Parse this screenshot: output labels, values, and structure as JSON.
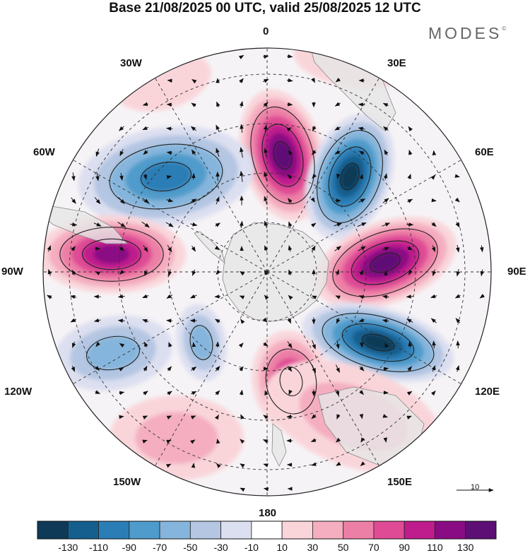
{
  "title": "Base 21/08/2025 00 UTC, valid 25/08/2025 12 UTC",
  "brand": "MODES",
  "brand_mark": "©",
  "meridian_labels": {
    "n0": "0",
    "e30": "30E",
    "e60": "60E",
    "e90": "90E",
    "e120": "120E",
    "e150": "150E",
    "s180": "180",
    "w150": "150W",
    "w120": "120W",
    "w90": "90W",
    "w60": "60W",
    "w30": "30W"
  },
  "vector_reference": {
    "value": "10",
    "icon": "arrow-right-icon"
  },
  "colorbar": {
    "levels": [
      "-130",
      "-110",
      "-90",
      "-70",
      "-50",
      "-30",
      "-10",
      "10",
      "30",
      "50",
      "70",
      "90",
      "110",
      "130"
    ],
    "colors": [
      "#0e3a57",
      "#145f8e",
      "#2b7db5",
      "#4f9bcb",
      "#85b5dc",
      "#b4c6e2",
      "#dcdff0",
      "#ffffff",
      "#f9d5da",
      "#f4aec0",
      "#ec7fa6",
      "#df4b95",
      "#bf1c8d",
      "#8a0c84",
      "#5d0f75"
    ]
  },
  "colors": {
    "land": "#e6e6e6",
    "coast": "#888888",
    "grid": "#333333",
    "wind": "#111111"
  }
}
